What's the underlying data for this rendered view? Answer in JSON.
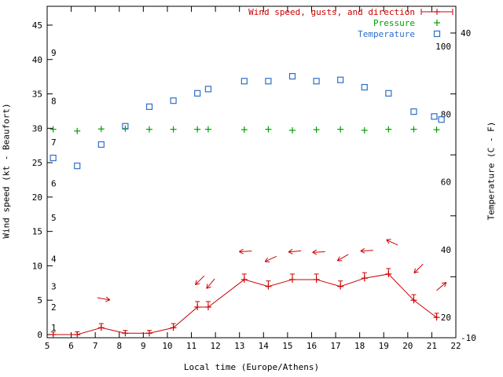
{
  "chart_data": {
    "type": "line",
    "xlabel": "Local time (Europe/Athens)",
    "ylabel_left": "Wind speed (kt - Beaufort)",
    "ylabel_right": "Temperature (C - F)",
    "x_range": [
      5,
      22
    ],
    "x_ticks": [
      5,
      6,
      7,
      8,
      9,
      10,
      11,
      12,
      13,
      14,
      15,
      16,
      17,
      18,
      19,
      20,
      21,
      22
    ],
    "left_axis": {
      "ticks": [
        0,
        5,
        10,
        15,
        20,
        25,
        30,
        35,
        40,
        45
      ]
    },
    "right_axis": {
      "tick_marks": [
        -10,
        0,
        10,
        20,
        30,
        40
      ],
      "tick_labels": [
        {
          "value": 40,
          "label": "40"
        },
        {
          "value": -10,
          "label": "-10"
        }
      ]
    },
    "beaufort_labels": [
      {
        "label": "1",
        "kt": 1
      },
      {
        "label": "2",
        "kt": 4
      },
      {
        "label": "3",
        "kt": 7
      },
      {
        "label": "4",
        "kt": 11
      },
      {
        "label": "5",
        "kt": 17
      },
      {
        "label": "6",
        "kt": 22
      },
      {
        "label": "7",
        "kt": 28
      },
      {
        "label": "8",
        "kt": 34
      },
      {
        "label": "9",
        "kt": 41
      }
    ],
    "fahrenheit_labels": [
      {
        "label": "20",
        "f": 20
      },
      {
        "label": "40",
        "f": 40
      },
      {
        "label": "60",
        "f": 60
      },
      {
        "label": "80",
        "f": 80
      },
      {
        "label": "100",
        "f": 100
      }
    ],
    "legend": [
      {
        "label": "Wind speed, gusts, and direction",
        "color": "#cc0000",
        "marker": "errorbar"
      },
      {
        "label": "Pressure",
        "color": "#00a000",
        "marker": "plus"
      },
      {
        "label": "Temperature",
        "color": "#2e6fc9",
        "marker": "square"
      }
    ],
    "series": {
      "wind": {
        "name": "Wind speed, gusts, and direction",
        "color": "#cc0000",
        "x": [
          5.25,
          6.25,
          7.25,
          8.25,
          9.25,
          10.25,
          11.25,
          11.7,
          13.2,
          14.2,
          15.2,
          16.2,
          17.2,
          18.2,
          19.2,
          20.25,
          21.2
        ],
        "speed_kt": [
          0,
          0,
          1,
          0.2,
          0.2,
          1,
          4,
          4,
          8,
          7,
          8,
          8,
          7,
          8.2,
          8.8,
          5,
          2.5
        ],
        "gust_kt": [
          0.4,
          0.4,
          1.6,
          0.6,
          0.6,
          1.6,
          4.8,
          4.8,
          8.8,
          7.8,
          8.8,
          8.8,
          7.8,
          9,
          9.6,
          5.8,
          3.1
        ]
      },
      "pressure": {
        "name": "Pressure",
        "color": "#00a000",
        "x": [
          5.25,
          6.25,
          7.25,
          8.25,
          9.25,
          10.25,
          11.25,
          11.7,
          13.2,
          14.2,
          15.2,
          16.2,
          17.2,
          18.2,
          19.2,
          20.25,
          21.2
        ],
        "values_inhg": [
          29.85,
          29.6,
          29.9,
          29.95,
          29.85,
          29.85,
          29.85,
          29.85,
          29.8,
          29.85,
          29.7,
          29.8,
          29.85,
          29.7,
          29.85,
          29.85,
          29.8
        ]
      },
      "temperature": {
        "name": "Temperature",
        "color": "#2e6fc9",
        "x": [
          5.25,
          6.25,
          7.25,
          8.25,
          9.25,
          10.25,
          11.25,
          11.7,
          13.2,
          14.2,
          15.2,
          16.2,
          17.2,
          18.2,
          19.2,
          20.25,
          21.1,
          21.4
        ],
        "values_c": [
          19.5,
          18.2,
          21.7,
          24.7,
          27.9,
          28.9,
          30.1,
          30.8,
          32.1,
          32.1,
          32.9,
          32.1,
          32.3,
          31.1,
          30.1,
          27.1,
          26.3,
          25.8
        ]
      }
    },
    "wind_arrows": [
      {
        "x": 7.35,
        "kt": 5.2,
        "angle_deg": -10
      },
      {
        "x": 11.35,
        "kt": 7.9,
        "angle_deg": 225
      },
      {
        "x": 11.8,
        "kt": 7.4,
        "angle_deg": 230
      },
      {
        "x": 13.25,
        "kt": 12.1,
        "angle_deg": 183
      },
      {
        "x": 14.3,
        "kt": 11.0,
        "angle_deg": 205
      },
      {
        "x": 15.3,
        "kt": 12.1,
        "angle_deg": 185
      },
      {
        "x": 16.3,
        "kt": 12.0,
        "angle_deg": 183
      },
      {
        "x": 17.3,
        "kt": 11.2,
        "angle_deg": 210
      },
      {
        "x": 18.3,
        "kt": 12.2,
        "angle_deg": 183
      },
      {
        "x": 19.35,
        "kt": 13.4,
        "angle_deg": 155
      },
      {
        "x": 20.45,
        "kt": 9.6,
        "angle_deg": 225
      },
      {
        "x": 21.4,
        "kt": 7.0,
        "angle_deg": 40
      }
    ]
  }
}
